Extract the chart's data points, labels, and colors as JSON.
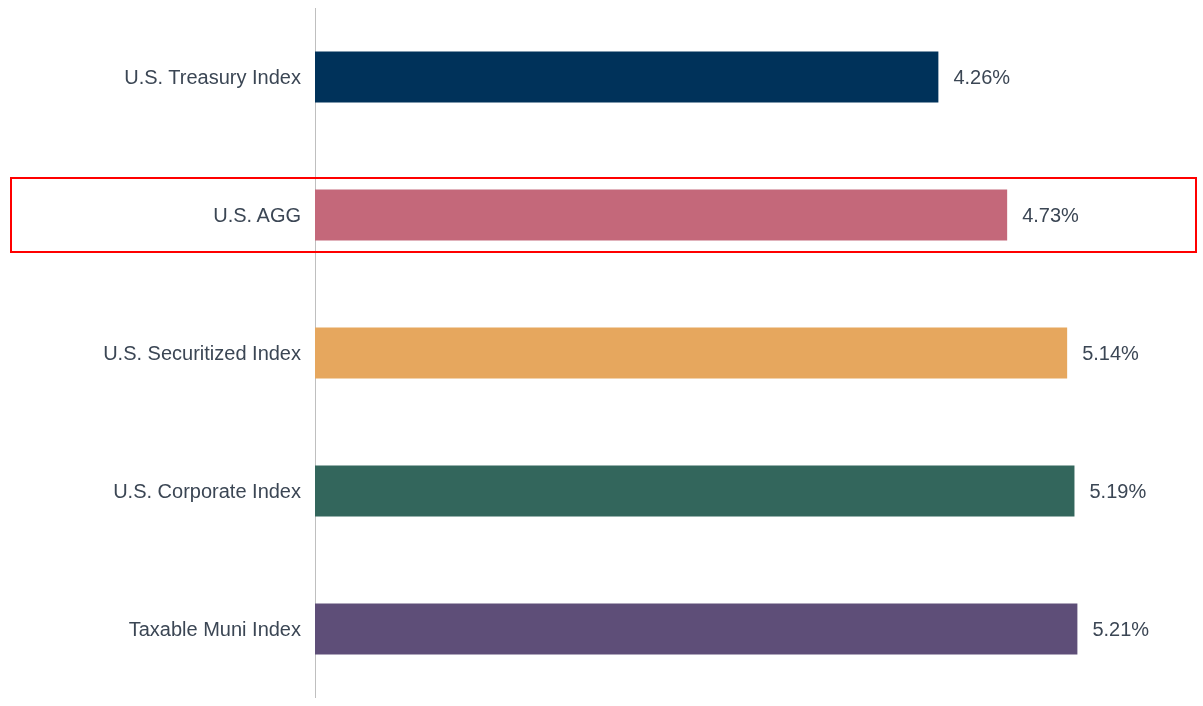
{
  "chart_data": {
    "type": "bar",
    "orientation": "horizontal",
    "categories": [
      "U.S. Treasury Index",
      "U.S. AGG",
      "U.S. Securitized Index",
      "U.S. Corporate Index",
      "Taxable Muni Index"
    ],
    "values": [
      4.26,
      4.73,
      5.14,
      5.19,
      5.21
    ],
    "colors": [
      "#00325a",
      "#c4687a",
      "#e6a75e",
      "#33665c",
      "#5e4e78"
    ],
    "value_labels": [
      "4.26%",
      "4.73%",
      "5.14%",
      "5.19%",
      "5.21%"
    ]
  }
}
